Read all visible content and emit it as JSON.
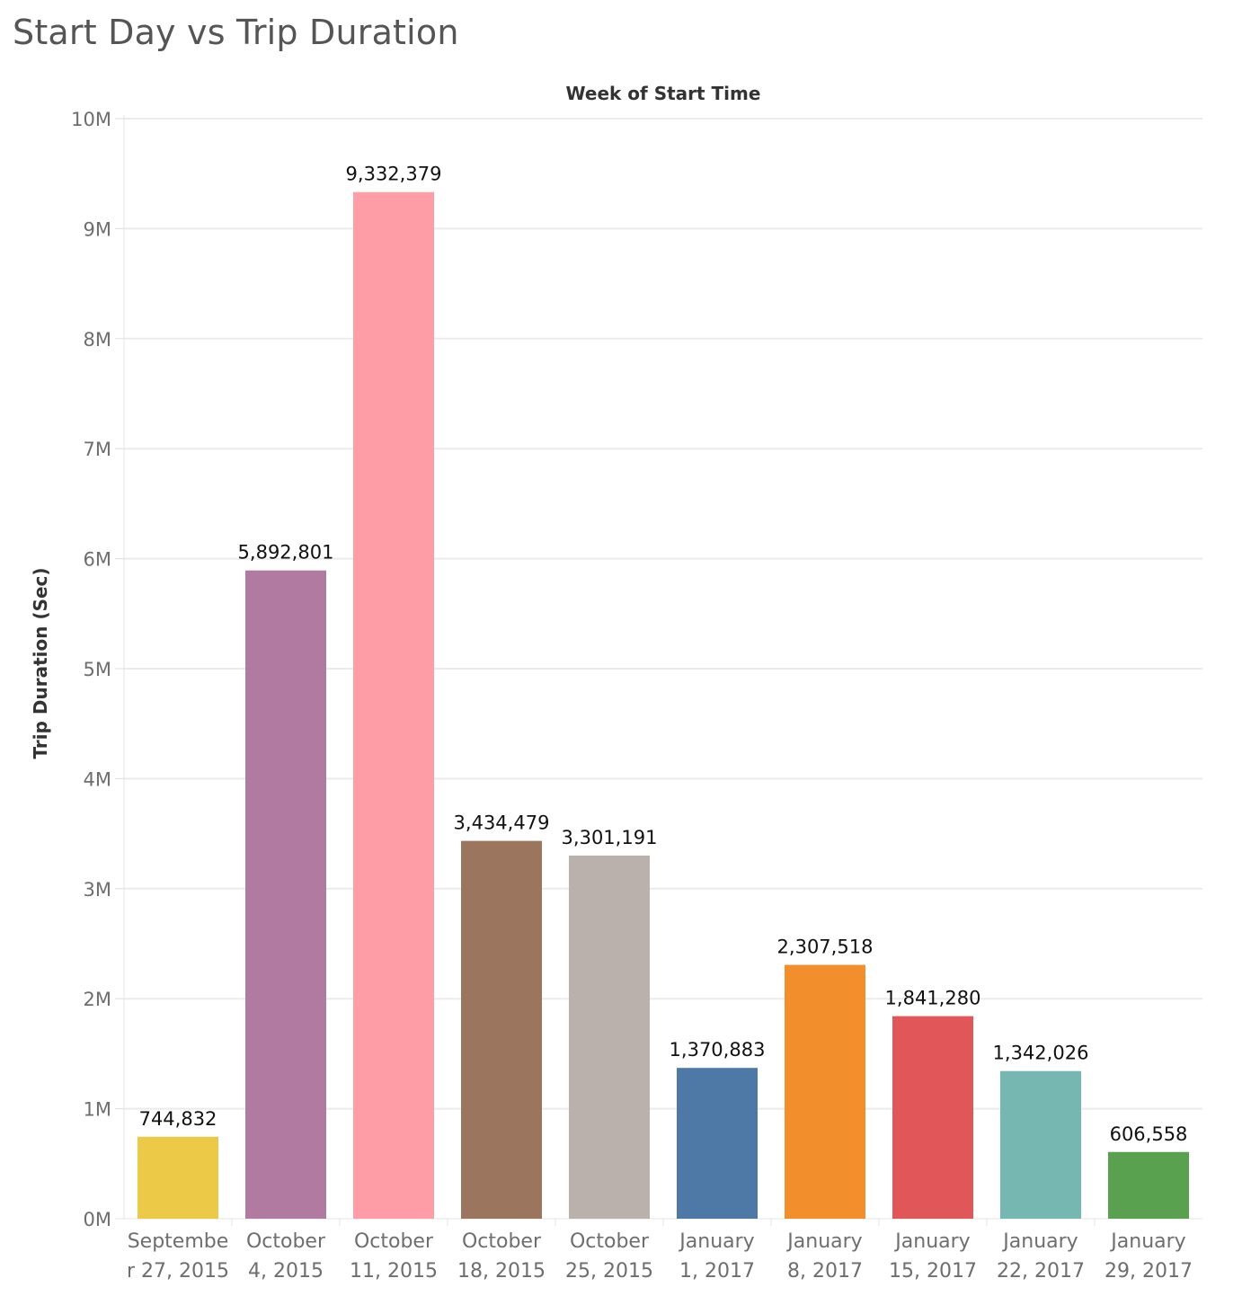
{
  "chart_data": {
    "type": "bar",
    "title": "Start Day vs Trip Duration",
    "xlabel": "Week of Start Time",
    "ylabel": "Trip Duration (Sec)",
    "ylim": [
      0,
      10000000
    ],
    "yticks": [
      0,
      1000000,
      2000000,
      3000000,
      4000000,
      5000000,
      6000000,
      7000000,
      8000000,
      9000000,
      10000000
    ],
    "ytick_labels": [
      "0M",
      "1M",
      "2M",
      "3M",
      "4M",
      "5M",
      "6M",
      "7M",
      "8M",
      "9M",
      "10M"
    ],
    "grid": true,
    "categories": [
      "September 27, 2015",
      "October 4, 2015",
      "October 11, 2015",
      "October 18, 2015",
      "October 25, 2015",
      "January 1, 2017",
      "January 8, 2017",
      "January 15, 2017",
      "January 22, 2017",
      "January 29, 2017"
    ],
    "category_label_lines": [
      [
        "Septembe",
        "r 27, 2015"
      ],
      [
        "October",
        "4, 2015"
      ],
      [
        "October",
        "11, 2015"
      ],
      [
        "October",
        "18, 2015"
      ],
      [
        "October",
        "25, 2015"
      ],
      [
        "January",
        "1, 2017"
      ],
      [
        "January",
        "8, 2017"
      ],
      [
        "January",
        "15, 2017"
      ],
      [
        "January",
        "22, 2017"
      ],
      [
        "January",
        "29, 2017"
      ]
    ],
    "values": [
      744832,
      5892801,
      9332379,
      3434479,
      3301191,
      1370883,
      2307518,
      1841280,
      1342026,
      606558
    ],
    "data_labels": [
      "744,832",
      "5,892,801",
      "9,332,379",
      "3,434,479",
      "3,301,191",
      "1,370,883",
      "2,307,518",
      "1,841,280",
      "1,342,026",
      "606,558"
    ],
    "colors": [
      "#EDC948",
      "#B07AA1",
      "#FF9DA7",
      "#9C755F",
      "#BAB0AC",
      "#4E79A7",
      "#F28E2B",
      "#E15759",
      "#76B7B2",
      "#59A14F"
    ],
    "gridline_color": "#ebebeb"
  }
}
